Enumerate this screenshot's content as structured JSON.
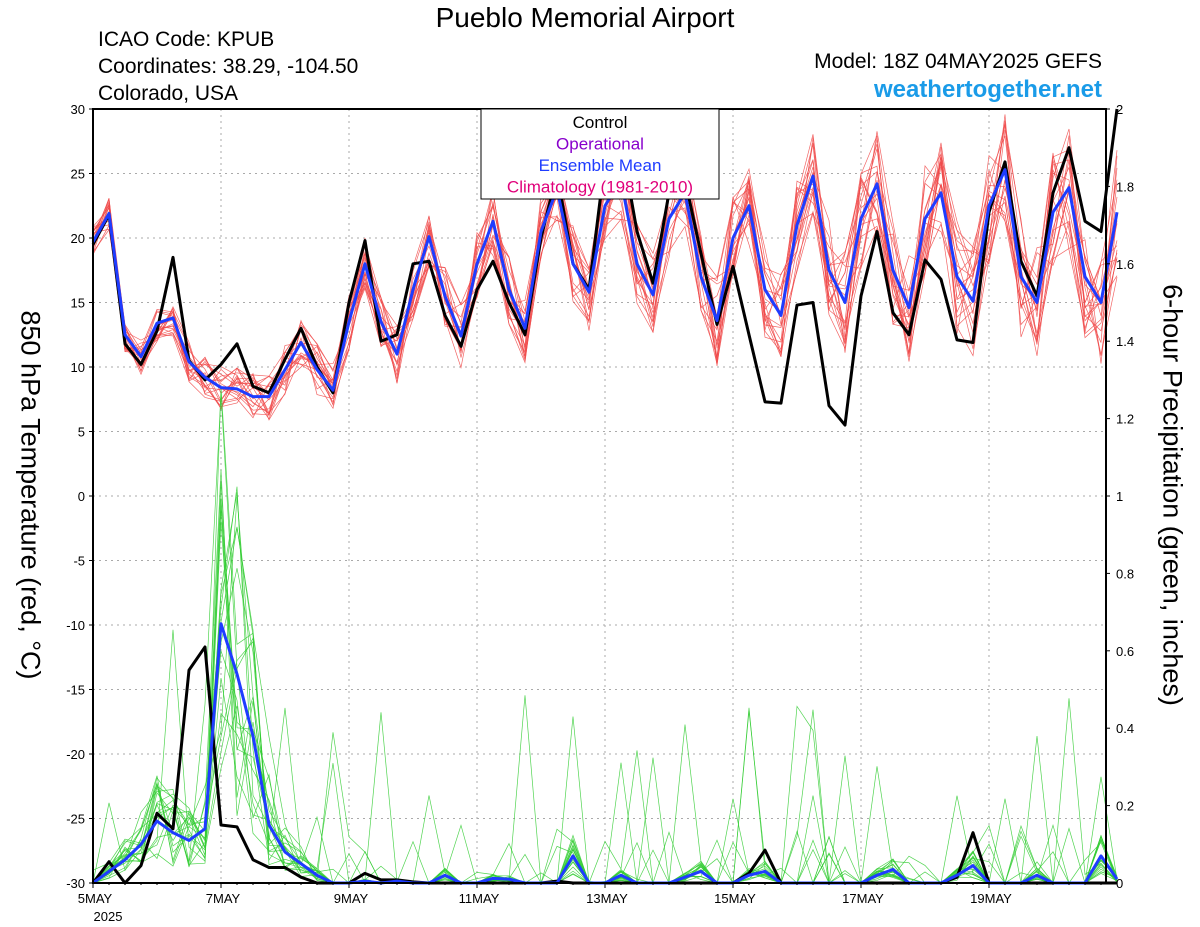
{
  "header": {
    "title": "Pueblo Memorial Airport",
    "icao": "ICAO Code: KPUB",
    "coords": "Coordinates: 38.29, -104.50",
    "region": "Colorado, USA",
    "model": "Model: 18Z 04MAY2025 GEFS",
    "site": "weathertogether.net"
  },
  "colors": {
    "control": "#000000",
    "operational": "#8800cc",
    "ensemble_mean": "#1e3cff",
    "climatology": "#e0007a",
    "members_temp": "#f04a4a",
    "members_precip": "#33cc33"
  },
  "chart_data": {
    "type": "line",
    "title": "Pueblo Memorial Airport",
    "ylabel_left": "850 hPa Temperature (red, °C)",
    "ylabel_right": "6-hour Precipitation (green, inches)",
    "ylim_left": [
      -30,
      30
    ],
    "ylim_right": [
      0,
      2
    ],
    "yticks_left": [
      30,
      25,
      20,
      15,
      10,
      5,
      0,
      -5,
      -10,
      -15,
      -20,
      -25,
      -30
    ],
    "yticks_right": [
      "2",
      "1.8",
      "1.6",
      "1.4",
      "1.2",
      "1",
      "0.8",
      "0.6",
      "0.4",
      "0.2",
      "0"
    ],
    "xticks": [
      {
        "label": "5MAY",
        "sub": "2025",
        "step": 0
      },
      {
        "label": "7MAY",
        "step": 8
      },
      {
        "label": "9MAY",
        "step": 16
      },
      {
        "label": "11MAY",
        "step": 24
      },
      {
        "label": "13MAY",
        "step": 32
      },
      {
        "label": "15MAY",
        "step": 40
      },
      {
        "label": "17MAY",
        "step": 48
      },
      {
        "label": "19MAY",
        "step": 56
      }
    ],
    "x_step": "6 h from 00Z 5MAY 2025",
    "grid": true,
    "legend": {
      "location": "top-center",
      "entries": [
        "Control",
        "Operational",
        "Ensemble Mean",
        "Climatology (1981-2010)"
      ]
    },
    "series": [
      {
        "name": "Control",
        "axis": "left",
        "values": [
          19.5,
          21.8,
          11.8,
          10.2,
          12.8,
          18.5,
          10.5,
          9.0,
          10.2,
          11.8,
          8.5,
          8.0,
          10.6,
          13.0,
          10.0,
          8.0,
          15.0,
          19.8,
          12.0,
          12.5,
          18.0,
          18.2,
          14.0,
          11.6,
          16.0,
          18.2,
          15.0,
          12.5,
          20.0,
          25.0,
          18.0,
          16.0,
          26.0,
          27.5,
          20.5,
          16.5,
          23.5,
          24.5,
          18.8,
          13.3,
          17.8,
          12.5,
          7.3,
          7.2,
          14.8,
          15.0,
          7.0,
          5.5,
          15.5,
          20.5,
          14.2,
          12.5,
          18.3,
          16.8,
          12.1,
          11.9,
          22.0,
          25.9,
          18.2,
          15.5,
          23.5,
          27.0,
          21.3,
          20.5,
          30.0
        ]
      },
      {
        "name": "Ensemble Mean",
        "axis": "left",
        "values": [
          19.7,
          21.9,
          12.5,
          10.8,
          13.4,
          13.8,
          10.4,
          9.2,
          8.4,
          8.3,
          7.7,
          7.7,
          9.8,
          11.9,
          9.8,
          8.2,
          13.5,
          18.0,
          13.5,
          11.0,
          16.0,
          20.1,
          15.5,
          12.4,
          18.0,
          21.3,
          16.0,
          13.0,
          20.5,
          23.8,
          18.0,
          15.8,
          22.5,
          24.5,
          18.0,
          15.6,
          21.5,
          23.5,
          17.0,
          13.6,
          20.0,
          22.5,
          16.0,
          14.0,
          21.0,
          24.8,
          17.5,
          15.0,
          21.5,
          24.2,
          17.5,
          14.6,
          21.5,
          23.5,
          17.0,
          15.1,
          22.5,
          25.3,
          17.0,
          15.0,
          22.0,
          23.9,
          17.0,
          15.0,
          22.0
        ]
      },
      {
        "name": "Control precipitation",
        "axis": "right",
        "values": [
          0.0,
          0.055,
          0.0,
          0.045,
          0.18,
          0.14,
          0.55,
          0.61,
          0.15,
          0.145,
          0.06,
          0.04,
          0.04,
          0.015,
          0.0,
          0.0,
          0.0,
          0.025,
          0.008,
          0.008,
          0.003,
          0.0,
          0.0,
          0.0,
          0.0,
          0.0,
          0.0,
          0.0,
          0.0,
          0.005,
          0.0,
          0.0,
          0.0,
          0.0,
          0.0,
          0.0,
          0.0,
          0.0,
          0.0,
          0.0,
          0.0,
          0.025,
          0.085,
          0.0,
          0.0,
          0.0,
          0.0,
          0.0,
          0.0,
          0.0,
          0.0,
          0.0,
          0.0,
          0.0,
          0.015,
          0.13,
          0.0,
          0.0,
          0.0,
          0.0,
          0.0,
          0.0,
          0.0,
          0.0,
          0.0
        ]
      },
      {
        "name": "Ensemble Mean precipitation",
        "axis": "right",
        "values": [
          0.0,
          0.03,
          0.06,
          0.1,
          0.16,
          0.13,
          0.11,
          0.14,
          0.67,
          0.54,
          0.38,
          0.15,
          0.08,
          0.05,
          0.02,
          0.0,
          0.0,
          0.005,
          0.0,
          0.005,
          0.0,
          0.0,
          0.02,
          0.0,
          0.0,
          0.012,
          0.01,
          0.0,
          0.0,
          0.0,
          0.07,
          0.0,
          0.0,
          0.02,
          0.0,
          0.0,
          0.0,
          0.015,
          0.03,
          0.0,
          0.0,
          0.02,
          0.03,
          0.0,
          0.0,
          0.0,
          0.0,
          0.0,
          0.0,
          0.02,
          0.035,
          0.0,
          0.0,
          0.0,
          0.02,
          0.045,
          0.0,
          0.0,
          0.0,
          0.02,
          0.0,
          0.0,
          0.0,
          0.07,
          0.01
        ]
      }
    ]
  }
}
